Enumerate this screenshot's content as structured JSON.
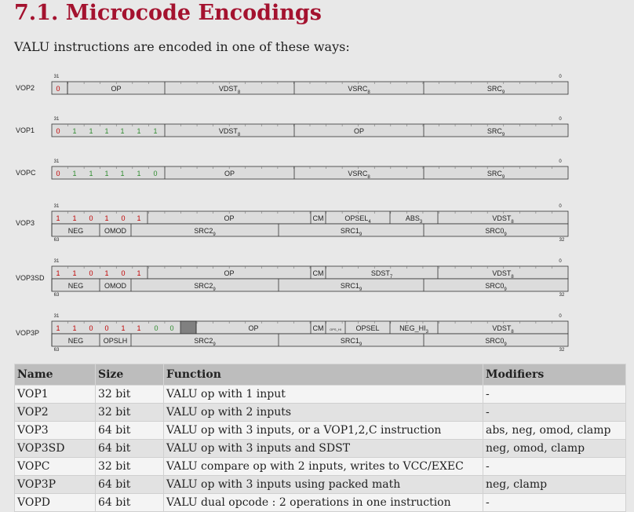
{
  "title": "7.1. Microcode Encodings",
  "intro": "VALU instructions are encoded in one of these ways:",
  "colors": {
    "title": "#a4122f",
    "red_bit": "#c00000",
    "green_bit": "#2e8b2e",
    "field_fill": "#dcdcdc",
    "gray_field": "#808080"
  },
  "diagram": {
    "bit_hi_label": "31",
    "bit_lo_label": "0",
    "bit_hi64_label": "63",
    "bit_lo64_label": "32",
    "rows": [
      {
        "name": "VOP2",
        "bits": [
          {
            "v": "0",
            "c": "red"
          }
        ],
        "fields": [
          "OP",
          "VDST",
          "VSRC",
          "SRC"
        ],
        "subs": [
          "",
          "8",
          "8",
          "9"
        ]
      },
      {
        "name": "VOP1",
        "bits": [
          {
            "v": "0",
            "c": "red"
          },
          {
            "v": "1",
            "c": "green"
          },
          {
            "v": "1",
            "c": "green"
          },
          {
            "v": "1",
            "c": "green"
          },
          {
            "v": "1",
            "c": "green"
          },
          {
            "v": "1",
            "c": "green"
          },
          {
            "v": "1",
            "c": "green"
          }
        ],
        "fields": [
          "VDST",
          "OP",
          "SRC"
        ],
        "subs": [
          "8",
          "",
          "9"
        ]
      },
      {
        "name": "VOPC",
        "bits": [
          {
            "v": "0",
            "c": "red"
          },
          {
            "v": "1",
            "c": "green"
          },
          {
            "v": "1",
            "c": "green"
          },
          {
            "v": "1",
            "c": "green"
          },
          {
            "v": "1",
            "c": "green"
          },
          {
            "v": "1",
            "c": "green"
          },
          {
            "v": "0",
            "c": "green"
          }
        ],
        "fields": [
          "OP",
          "VSRC",
          "SRC"
        ],
        "subs": [
          "",
          "8",
          "9"
        ]
      },
      {
        "name": "VOP3",
        "bits": [
          {
            "v": "1",
            "c": "red"
          },
          {
            "v": "1",
            "c": "red"
          },
          {
            "v": "0",
            "c": "red"
          },
          {
            "v": "1",
            "c": "red"
          },
          {
            "v": "0",
            "c": "red"
          },
          {
            "v": "1",
            "c": "red"
          }
        ],
        "fields": [
          "OP",
          "CM",
          "OPSEL",
          "ABS",
          "VDST"
        ],
        "subs": [
          "",
          "",
          "4",
          "3",
          "8"
        ],
        "low_fields": [
          "NEG",
          "OMOD",
          "SRC2",
          "SRC1",
          "SRC0"
        ],
        "low_subs": [
          "",
          "",
          "9",
          "9",
          "9"
        ]
      },
      {
        "name": "VOP3SD",
        "bits": [
          {
            "v": "1",
            "c": "red"
          },
          {
            "v": "1",
            "c": "red"
          },
          {
            "v": "0",
            "c": "red"
          },
          {
            "v": "1",
            "c": "red"
          },
          {
            "v": "0",
            "c": "red"
          },
          {
            "v": "1",
            "c": "red"
          }
        ],
        "fields": [
          "OP",
          "CM",
          "SDST",
          "VDST"
        ],
        "subs": [
          "",
          "",
          "7",
          "8"
        ],
        "low_fields": [
          "NEG",
          "OMOD",
          "SRC2",
          "SRC1",
          "SRC0"
        ],
        "low_subs": [
          "",
          "",
          "9",
          "9",
          "9"
        ]
      },
      {
        "name": "VOP3P",
        "bits": [
          {
            "v": "1",
            "c": "red"
          },
          {
            "v": "1",
            "c": "red"
          },
          {
            "v": "0",
            "c": "red"
          },
          {
            "v": "0",
            "c": "red"
          },
          {
            "v": "1",
            "c": "red"
          },
          {
            "v": "1",
            "c": "red"
          },
          {
            "v": "0",
            "c": "green"
          },
          {
            "v": "0",
            "c": "green"
          }
        ],
        "fields": [
          "OP",
          "CM",
          "OPS_HI",
          "OPSEL",
          "NEG_HI",
          "VDST"
        ],
        "subs": [
          "",
          "",
          "",
          "",
          "3",
          "8"
        ],
        "low_fields": [
          "NEG",
          "OPSLH",
          "SRC2",
          "SRC1",
          "SRC0"
        ],
        "low_subs": [
          "",
          "",
          "9",
          "9",
          "9"
        ]
      }
    ]
  },
  "table": {
    "headers": [
      "Name",
      "Size",
      "Function",
      "Modifiers"
    ],
    "rows": [
      [
        "VOP1",
        "32 bit",
        "VALU op with 1 input",
        "-"
      ],
      [
        "VOP2",
        "32 bit",
        "VALU op with 2 inputs",
        "-"
      ],
      [
        "VOP3",
        "64 bit",
        "VALU op with 3 inputs, or a VOP1,2,C instruction",
        "abs, neg, omod, clamp"
      ],
      [
        "VOP3SD",
        "64 bit",
        "VALU op with 3 inputs and SDST",
        "neg, omod, clamp"
      ],
      [
        "VOPC",
        "32 bit",
        "VALU compare op with 2 inputs, writes to VCC/EXEC",
        "-"
      ],
      [
        "VOP3P",
        "64 bit",
        "VALU op with 3 inputs using packed math",
        "neg, clamp"
      ],
      [
        "VOPD",
        "64 bit",
        "VALU dual opcode : 2 operations in one instruction",
        "-"
      ]
    ]
  }
}
